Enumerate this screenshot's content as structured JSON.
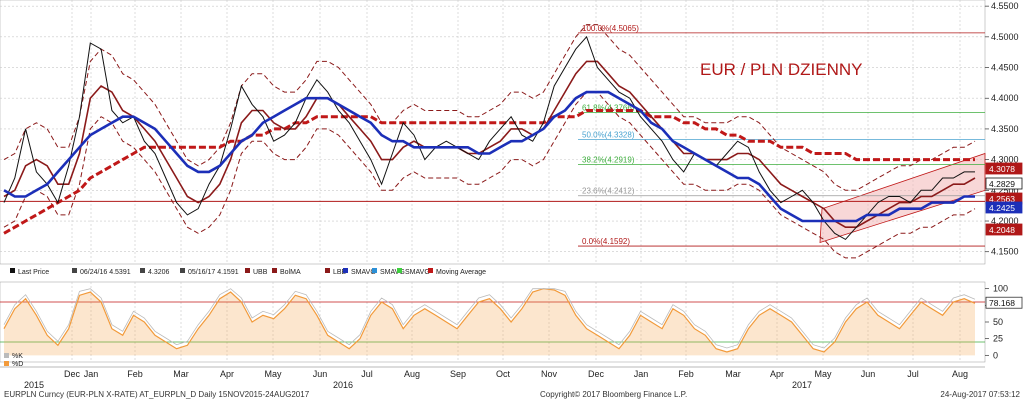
{
  "chart_data": [
    {
      "type": "line",
      "title": "EUR / PLN DZIENNY",
      "ylim": [
        4.13,
        4.56
      ],
      "y_ticks": [
        "4.1500",
        "4.2000",
        "4.2500",
        "4.3000",
        "4.3500",
        "4.4000",
        "4.4500",
        "4.5000",
        "4.5500"
      ],
      "x_month_labels": [
        "Dec",
        "Jan",
        "Feb",
        "Mar",
        "Apr",
        "May",
        "Jun",
        "Jul",
        "Aug",
        "Sep",
        "Oct",
        "Nov",
        "Dec",
        "Jan",
        "Feb",
        "Mar",
        "Apr",
        "May",
        "Jun",
        "Jul",
        "Aug"
      ],
      "x_year_labels": [
        "2015",
        "2016",
        "2017"
      ],
      "grid": true,
      "price_tags": [
        {
          "label": "4.3078",
          "value": 4.3078,
          "color": "#b01818"
        },
        {
          "label": "4.2829",
          "value": 4.2829,
          "color": "#111111"
        },
        {
          "label": "4.2563",
          "value": 4.2563,
          "color": "#b01818"
        },
        {
          "label": "4.2425",
          "value": 4.2425,
          "color": "#1c2fb8"
        },
        {
          "label": "4.2048",
          "value": 4.2048,
          "color": "#b01818"
        }
      ],
      "fibonacci": [
        {
          "label": "100.0%(4.5065)",
          "value": 4.5065
        },
        {
          "label": "61.8%(4.3766)",
          "value": 4.3766
        },
        {
          "label": "50.0%(4.3328)",
          "value": 4.3328
        },
        {
          "label": "38.2%(4.2919)",
          "value": 4.2919
        },
        {
          "label": "23.6%(4.2412)",
          "value": 4.2412
        },
        {
          "label": "0.0%(4.1592)",
          "value": 4.1592
        }
      ],
      "legend": [
        {
          "text": "Last Price",
          "color": "#111111"
        },
        {
          "text": "06/24/16 4.5391",
          "color": "#444444"
        },
        {
          "text": "4.3206",
          "color": "#444444"
        },
        {
          "text": "05/16/17 4.1591",
          "color": "#444444"
        },
        {
          "text": "UBB",
          "color": "#8b1a1a"
        },
        {
          "text": "BolMA",
          "color": "#8b1a1a"
        },
        {
          "text": "LBB",
          "color": "#8b1a1a"
        },
        {
          "text": "SMAVG",
          "color": "#1c2fb8"
        },
        {
          "text": "SMAVG",
          "color": "#2b8fd6"
        },
        {
          "text": "SMAVG",
          "color": "#3fcf3f"
        },
        {
          "text": "Moving Average",
          "color": "#c01818"
        }
      ],
      "series": [
        {
          "name": "Last Price",
          "values": [
            4.23,
            4.27,
            4.35,
            4.28,
            4.26,
            4.23,
            4.29,
            4.37,
            4.49,
            4.48,
            4.38,
            4.36,
            4.37,
            4.33,
            4.31,
            4.27,
            4.23,
            4.21,
            4.22,
            4.26,
            4.29,
            4.35,
            4.42,
            4.39,
            4.37,
            4.33,
            4.34,
            4.36,
            4.4,
            4.43,
            4.41,
            4.38,
            4.36,
            4.33,
            4.3,
            4.26,
            4.31,
            4.36,
            4.34,
            4.3,
            4.32,
            4.33,
            4.32,
            4.31,
            4.3,
            4.33,
            4.35,
            4.37,
            4.34,
            4.33,
            4.36,
            4.42,
            4.45,
            4.48,
            4.5,
            4.45,
            4.43,
            4.41,
            4.4,
            4.37,
            4.35,
            4.33,
            4.3,
            4.28,
            4.31,
            4.3,
            4.29,
            4.31,
            4.33,
            4.32,
            4.28,
            4.25,
            4.23,
            4.24,
            4.25,
            4.23,
            4.2,
            4.18,
            4.17,
            4.19,
            4.21,
            4.23,
            4.24,
            4.24,
            4.23,
            4.25,
            4.25,
            4.27,
            4.27,
            4.28,
            4.28
          ]
        },
        {
          "name": "SMAVG (blue)",
          "values": [
            4.25,
            4.24,
            4.24,
            4.25,
            4.26,
            4.28,
            4.3,
            4.32,
            4.34,
            4.35,
            4.36,
            4.37,
            4.37,
            4.36,
            4.35,
            4.33,
            4.31,
            4.29,
            4.28,
            4.28,
            4.29,
            4.31,
            4.33,
            4.34,
            4.36,
            4.37,
            4.38,
            4.39,
            4.4,
            4.4,
            4.4,
            4.39,
            4.38,
            4.37,
            4.36,
            4.34,
            4.33,
            4.33,
            4.32,
            4.32,
            4.32,
            4.32,
            4.32,
            4.32,
            4.31,
            4.31,
            4.32,
            4.33,
            4.33,
            4.34,
            4.35,
            4.37,
            4.38,
            4.4,
            4.41,
            4.41,
            4.41,
            4.4,
            4.39,
            4.38,
            4.36,
            4.35,
            4.33,
            4.32,
            4.31,
            4.3,
            4.29,
            4.28,
            4.27,
            4.27,
            4.26,
            4.24,
            4.22,
            4.21,
            4.2,
            4.2,
            4.2,
            4.2,
            4.2,
            4.2,
            4.21,
            4.21,
            4.21,
            4.22,
            4.22,
            4.22,
            4.23,
            4.23,
            4.23,
            4.24,
            4.24
          ]
        },
        {
          "name": "BolMA",
          "values": [
            4.24,
            4.25,
            4.29,
            4.3,
            4.29,
            4.26,
            4.26,
            4.31,
            4.4,
            4.42,
            4.41,
            4.38,
            4.37,
            4.35,
            4.33,
            4.3,
            4.27,
            4.24,
            4.23,
            4.24,
            4.26,
            4.3,
            4.36,
            4.38,
            4.38,
            4.36,
            4.35,
            4.35,
            4.37,
            4.4,
            4.4,
            4.39,
            4.37,
            4.35,
            4.33,
            4.3,
            4.3,
            4.32,
            4.33,
            4.32,
            4.32,
            4.32,
            4.32,
            4.31,
            4.31,
            4.32,
            4.33,
            4.35,
            4.35,
            4.34,
            4.35,
            4.38,
            4.41,
            4.44,
            4.46,
            4.46,
            4.44,
            4.42,
            4.41,
            4.39,
            4.37,
            4.35,
            4.33,
            4.31,
            4.31,
            4.3,
            4.3,
            4.3,
            4.31,
            4.31,
            4.3,
            4.28,
            4.26,
            4.25,
            4.24,
            4.23,
            4.22,
            4.2,
            4.19,
            4.19,
            4.2,
            4.21,
            4.22,
            4.23,
            4.23,
            4.24,
            4.24,
            4.25,
            4.26,
            4.26,
            4.27
          ]
        },
        {
          "name": "Moving Average",
          "values": [
            4.18,
            4.19,
            4.2,
            4.21,
            4.22,
            4.23,
            4.24,
            4.25,
            4.27,
            4.28,
            4.29,
            4.3,
            4.31,
            4.32,
            4.32,
            4.32,
            4.32,
            4.32,
            4.32,
            4.32,
            4.32,
            4.33,
            4.33,
            4.34,
            4.34,
            4.35,
            4.35,
            4.36,
            4.36,
            4.37,
            4.37,
            4.37,
            4.37,
            4.37,
            4.37,
            4.36,
            4.36,
            4.36,
            4.36,
            4.36,
            4.36,
            4.36,
            4.36,
            4.36,
            4.36,
            4.36,
            4.36,
            4.36,
            4.36,
            4.36,
            4.36,
            4.37,
            4.37,
            4.37,
            4.38,
            4.38,
            4.38,
            4.38,
            4.38,
            4.38,
            4.37,
            4.37,
            4.37,
            4.36,
            4.36,
            4.35,
            4.35,
            4.34,
            4.34,
            4.33,
            4.33,
            4.33,
            4.32,
            4.32,
            4.32,
            4.31,
            4.31,
            4.31,
            4.31,
            4.3,
            4.3,
            4.3,
            4.3,
            4.3,
            4.3,
            4.3,
            4.3,
            4.3,
            4.3,
            4.3,
            4.3
          ]
        }
      ]
    },
    {
      "type": "area",
      "y_ticks": [
        "0",
        "25",
        "50",
        "75",
        "100"
      ],
      "ylim": [
        -10,
        110
      ],
      "price_tag": {
        "label": "78.168",
        "value": 78.168
      },
      "legend": [
        {
          "text": "%K",
          "color": "#bbbbbb"
        },
        {
          "text": "%D",
          "color": "#f29a3a"
        }
      ],
      "series": [
        {
          "name": "%D",
          "values": [
            40,
            70,
            85,
            60,
            30,
            15,
            40,
            90,
            95,
            80,
            40,
            30,
            60,
            50,
            30,
            20,
            10,
            15,
            40,
            60,
            85,
            95,
            80,
            50,
            60,
            55,
            70,
            90,
            85,
            60,
            30,
            20,
            10,
            25,
            60,
            80,
            70,
            40,
            60,
            70,
            60,
            50,
            40,
            60,
            80,
            85,
            70,
            50,
            70,
            95,
            100,
            98,
            90,
            60,
            40,
            30,
            20,
            10,
            30,
            60,
            50,
            40,
            70,
            60,
            40,
            30,
            10,
            5,
            10,
            40,
            60,
            70,
            60,
            50,
            30,
            10,
            5,
            20,
            50,
            70,
            80,
            60,
            50,
            40,
            60,
            80,
            70,
            60,
            80,
            85,
            78
          ]
        }
      ]
    }
  ],
  "footer": {
    "left": "EURPLN Curncy (EUR-PLN X-RATE) AT_EURPLN_D  Daily 15NOV2015-24AUG2017",
    "center": "Copyright© 2017 Bloomberg Finance L.P.",
    "right": "24-Aug-2017 07:53:12"
  },
  "colors": {
    "price": "#111111",
    "blue": "#1c2fb8",
    "bolma": "#8b1a1a",
    "ma": "#c01818",
    "fib": "#b01818",
    "channel": "#f3b7b7",
    "stoch": "#f29a3a"
  }
}
